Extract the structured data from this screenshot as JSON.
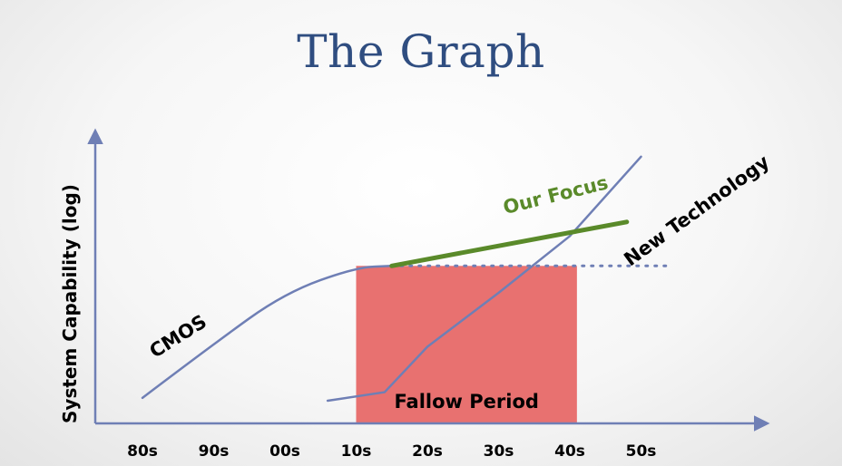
{
  "title": "The Graph",
  "colors": {
    "axis": "#6f7fb5",
    "cmos": "#6f7fb5",
    "new_technology": "#6f7fb5",
    "focus": "#5a8a2a",
    "fallow_fill": "#e87170",
    "dotted": "#6f7fb5"
  },
  "chart_data": {
    "type": "line",
    "title": "The Graph",
    "ylabel": "System Capability (log)",
    "xlabel": "",
    "y_scale": "log",
    "categories": [
      "80s",
      "90s",
      "00s",
      "10s",
      "20s",
      "30s",
      "40s",
      "50s"
    ],
    "xlim": [
      "80s",
      "60s"
    ],
    "ylim": [
      0,
      10
    ],
    "grid": false,
    "legend": "none",
    "series": [
      {
        "name": "CMOS",
        "points": [
          [
            0,
            0.9
          ],
          [
            1,
            2.8
          ],
          [
            2,
            4.6
          ],
          [
            3,
            5.5
          ],
          [
            3.5,
            5.55
          ]
        ]
      },
      {
        "name": "New Technology",
        "points": [
          [
            2.6,
            0.8
          ],
          [
            3.4,
            1.1
          ],
          [
            4,
            2.7
          ],
          [
            5,
            4.6
          ],
          [
            6,
            6.6
          ],
          [
            7,
            9.4
          ]
        ]
      },
      {
        "name": "Our Focus",
        "points": [
          [
            3.5,
            5.55
          ],
          [
            6.8,
            7.1
          ]
        ]
      }
    ],
    "reference_line": {
      "y": 5.55,
      "x_start": 3.5,
      "x_end": 7.4,
      "style": "dotted"
    },
    "shaded_region": {
      "label": "Fallow Period",
      "x_start": 3.0,
      "x_end": 6.1
    }
  }
}
